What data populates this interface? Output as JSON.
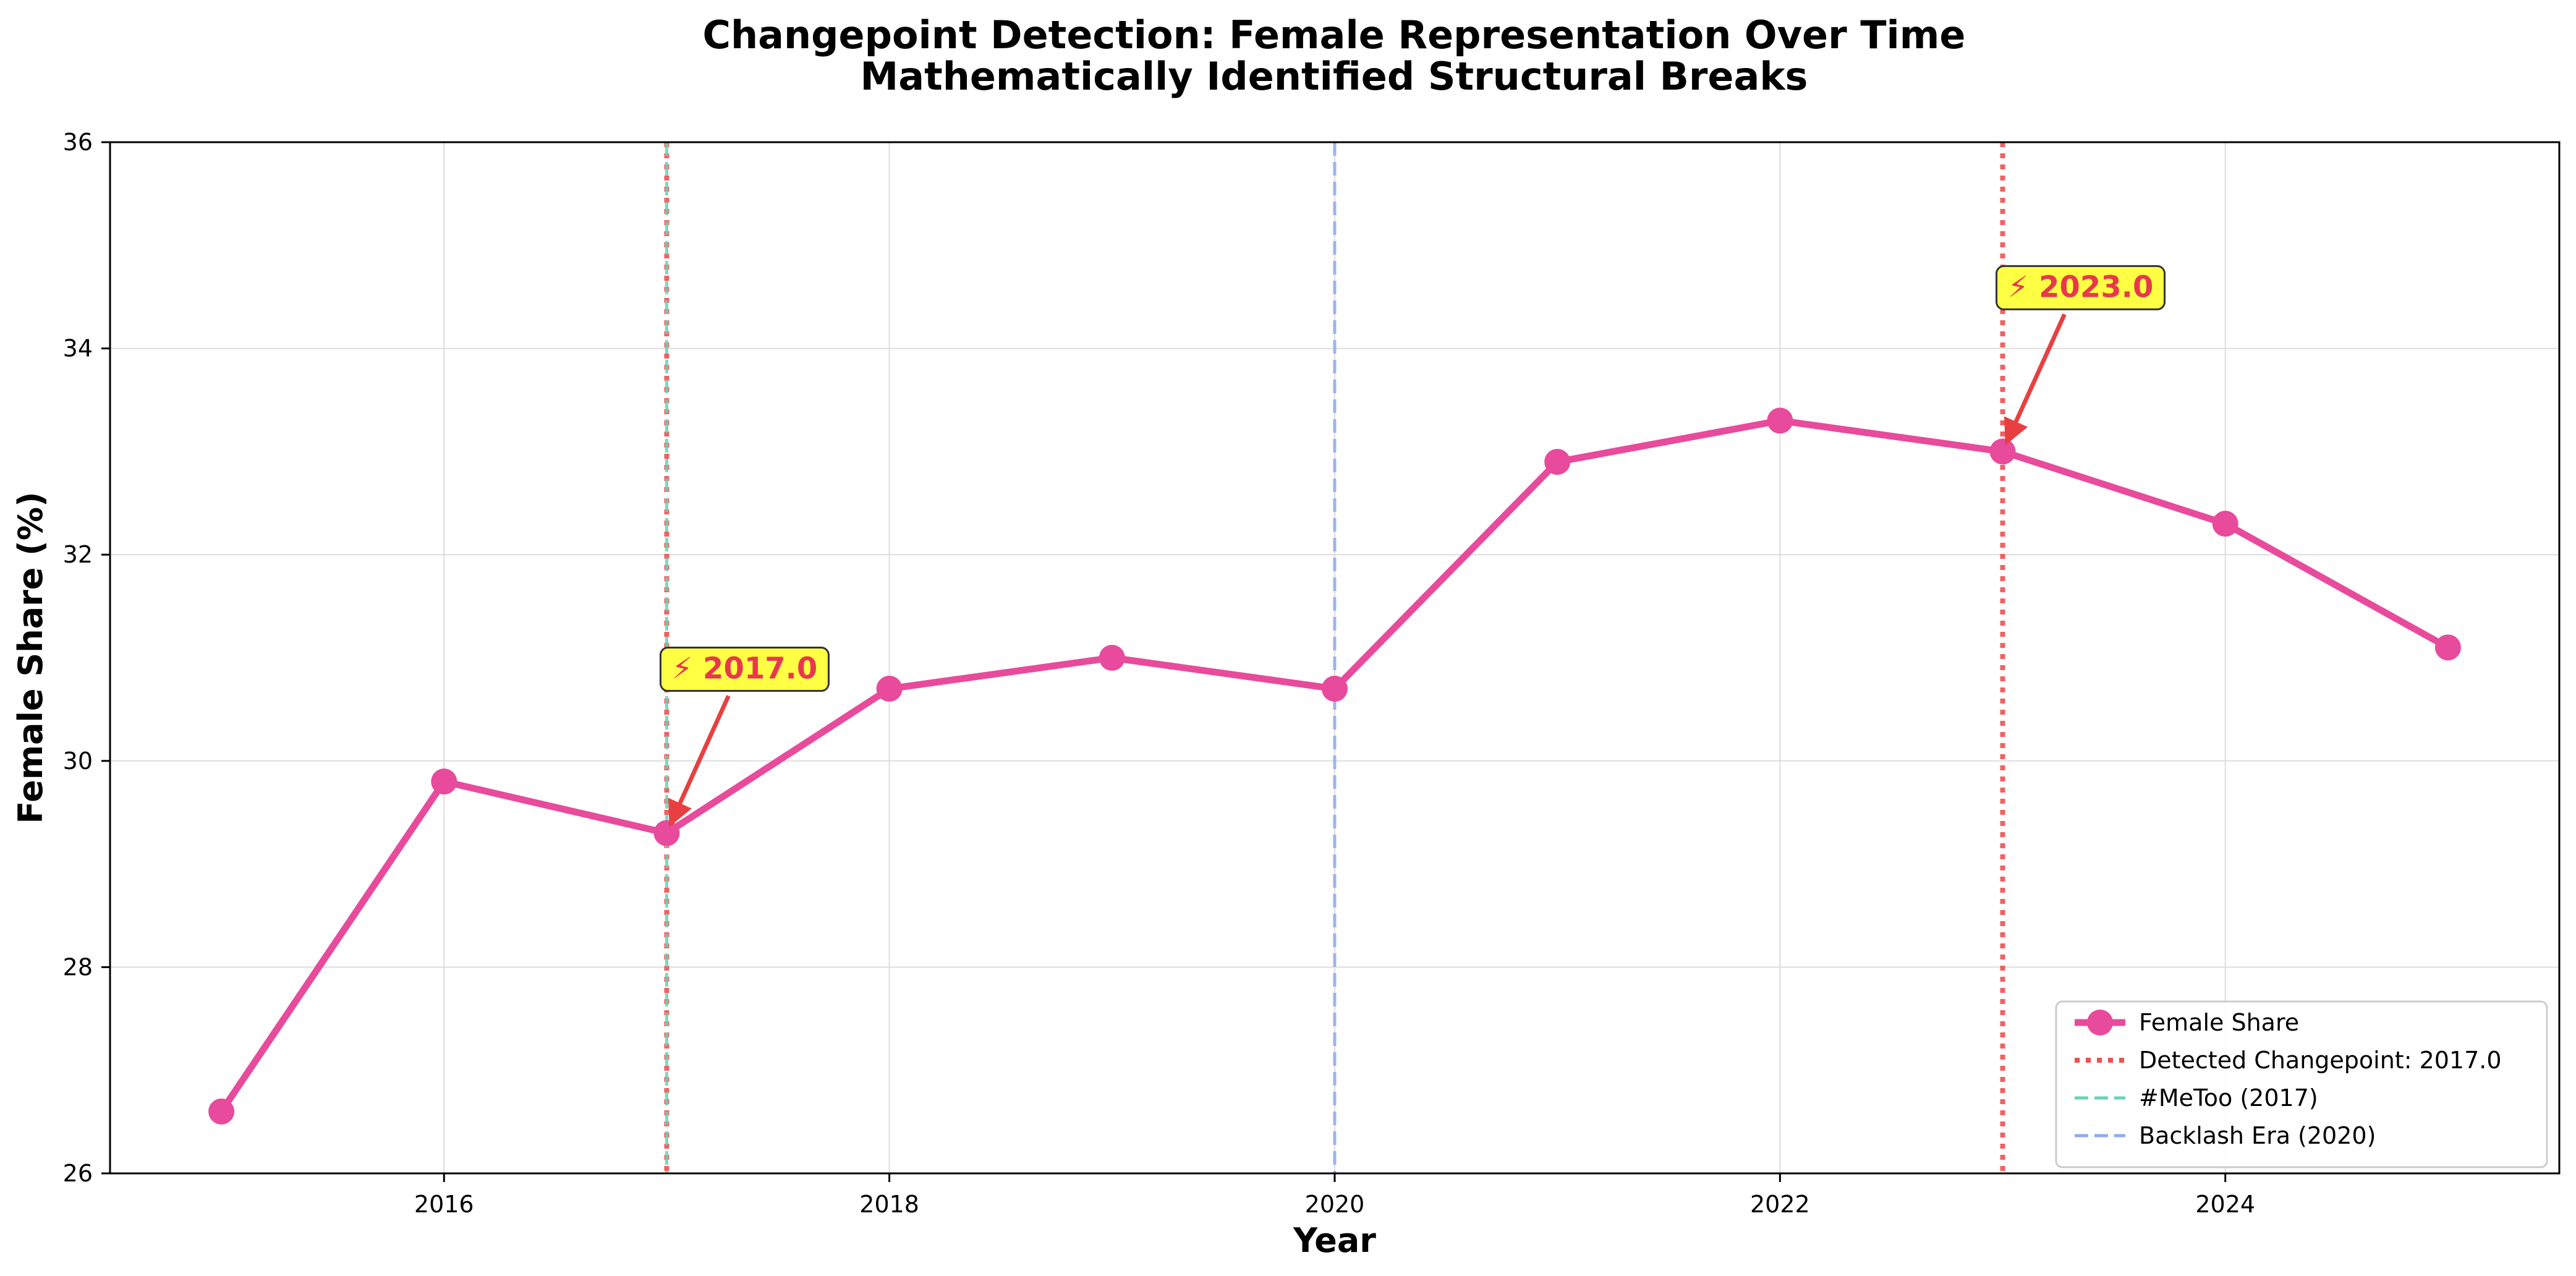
{
  "chart_data": {
    "type": "line",
    "title": "Changepoint Detection: Female Representation Over Time",
    "subtitle": "Mathematically Identified Structural Breaks",
    "xlabel": "Year",
    "ylabel": "Female Share (%)",
    "xlim": [
      2014.5,
      2025.5
    ],
    "ylim": [
      26,
      36
    ],
    "xticks": [
      2016,
      2018,
      2020,
      2022,
      2024
    ],
    "yticks": [
      26,
      28,
      30,
      32,
      34,
      36
    ],
    "grid": true,
    "legend_position": "lower-right",
    "series": [
      {
        "name": "Female Share",
        "color": "#e84a9c",
        "x": [
          2015,
          2016,
          2017,
          2018,
          2019,
          2020,
          2021,
          2022,
          2023,
          2024,
          2025
        ],
        "y": [
          26.6,
          29.8,
          29.3,
          30.7,
          31.0,
          30.7,
          32.9,
          33.3,
          33.0,
          32.3,
          31.1
        ]
      }
    ],
    "vlines": [
      {
        "x": 2017,
        "label": "Detected Changepoint: 2017.0",
        "color": "#f05050",
        "style": "dotted",
        "in_legend": true
      },
      {
        "x": 2023,
        "label": "",
        "color": "#f05050",
        "style": "dotted",
        "in_legend": false
      },
      {
        "x": 2017,
        "label": "#MeToo (2017)",
        "color": "#66d4b4",
        "style": "dashed",
        "in_legend": true
      },
      {
        "x": 2020,
        "label": "Backlash Era (2020)",
        "color": "#8faaf0",
        "style": "dashed",
        "in_legend": true
      }
    ],
    "annotations": [
      {
        "text": "⚡ 2017.0",
        "x": 2017,
        "y": 29.3,
        "box_color": "#ffff44",
        "text_color": "#e8384f",
        "arrow_color": "#e84040"
      },
      {
        "text": "⚡ 2023.0",
        "x": 2023,
        "y": 33.0,
        "box_color": "#ffff44",
        "text_color": "#e8384f",
        "arrow_color": "#e84040"
      }
    ]
  }
}
